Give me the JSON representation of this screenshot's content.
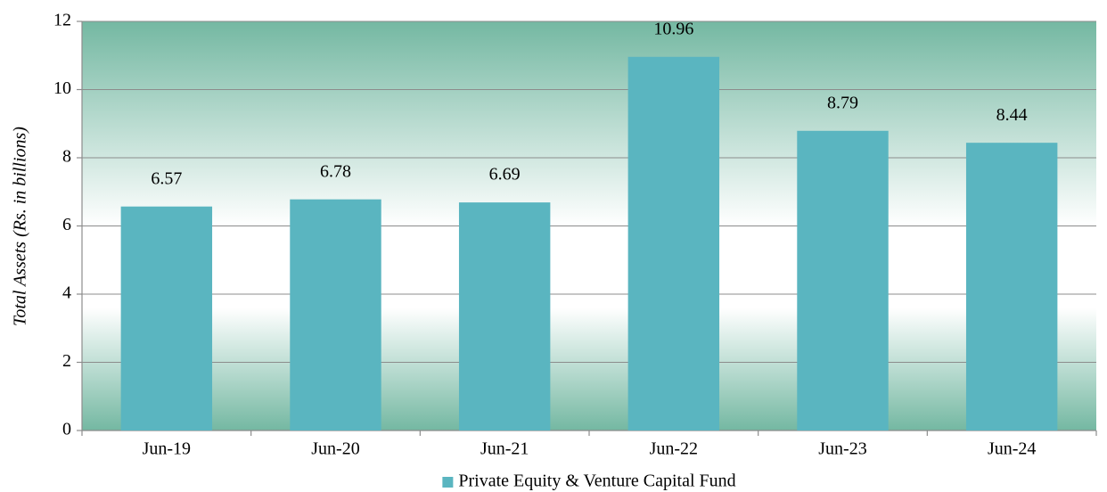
{
  "chart_data": {
    "type": "bar",
    "y_label": "Total Assets  (Rs. in billions)",
    "categories": [
      "Jun-19",
      "Jun-20",
      "Jun-21",
      "Jun-22",
      "Jun-23",
      "Jun-24"
    ],
    "series": [
      {
        "name": "Private Equity & Venture Capital Fund",
        "color": "#5ab5c0",
        "values": [
          6.57,
          6.78,
          6.69,
          10.96,
          8.79,
          8.44
        ]
      }
    ],
    "ylim": [
      0,
      12
    ],
    "yticks": [
      0,
      2,
      4,
      6,
      8,
      10,
      12
    ],
    "grid": true,
    "legend": "bottom",
    "data_labels": true
  }
}
